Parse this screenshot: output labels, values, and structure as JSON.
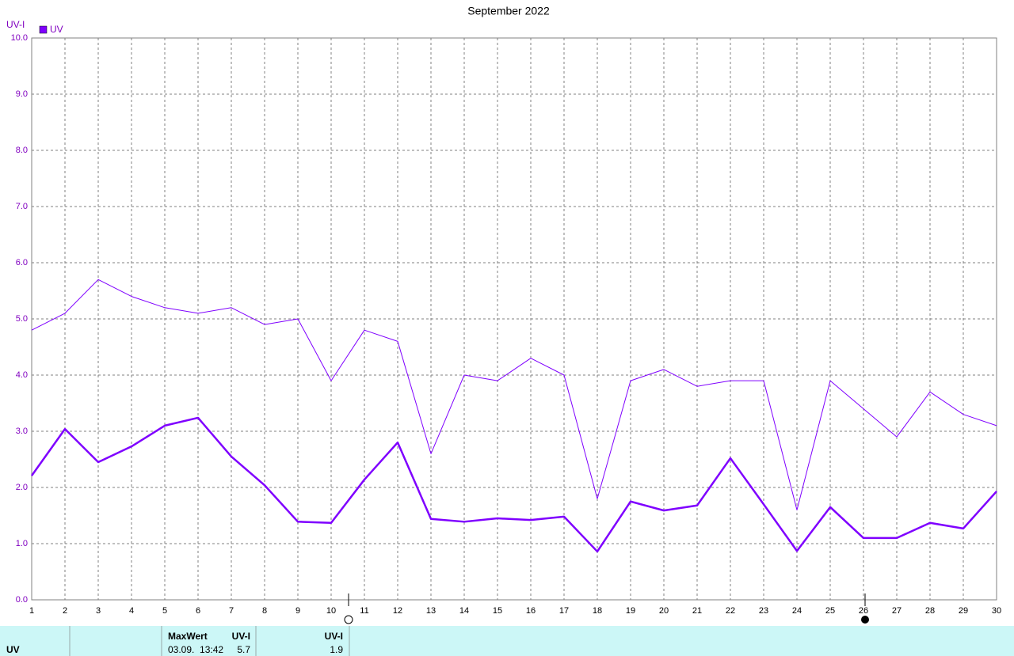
{
  "chart_data": {
    "type": "line",
    "title": "September 2022",
    "y_label": "UV-I",
    "x": [
      1,
      2,
      3,
      4,
      5,
      6,
      7,
      8,
      9,
      10,
      11,
      12,
      13,
      14,
      15,
      16,
      17,
      18,
      19,
      20,
      21,
      22,
      23,
      24,
      25,
      26,
      27,
      28,
      29,
      30
    ],
    "series": [
      {
        "name": "UV",
        "color": "#7f00ff",
        "values": [
          4.8,
          5.1,
          5.7,
          5.4,
          5.2,
          5.1,
          5.2,
          4.9,
          5.0,
          3.9,
          4.8,
          4.6,
          2.6,
          4.0,
          3.9,
          4.3,
          4.0,
          1.8,
          3.9,
          4.1,
          3.8,
          3.9,
          3.9,
          1.6,
          3.9,
          3.4,
          2.9,
          3.7,
          3.3,
          3.1
        ]
      },
      {
        "color": "#7f00ff",
        "values": [
          2.21,
          3.04,
          2.45,
          2.73,
          3.1,
          3.24,
          2.55,
          2.04,
          1.39,
          1.37,
          2.14,
          2.8,
          1.44,
          1.39,
          1.45,
          1.42,
          1.48,
          0.86,
          1.75,
          1.59,
          1.68,
          2.52,
          1.7,
          0.87,
          1.65,
          1.1,
          1.1,
          1.37,
          1.27,
          1.93
        ]
      }
    ],
    "xlim": [
      1,
      30
    ],
    "xticks": [
      1,
      2,
      3,
      4,
      5,
      6,
      7,
      8,
      9,
      10,
      11,
      12,
      13,
      14,
      15,
      16,
      17,
      18,
      19,
      20,
      21,
      22,
      23,
      24,
      25,
      26,
      27,
      28,
      29,
      30
    ],
    "ylim": [
      0,
      10
    ],
    "yticks": [
      {
        "value": 0,
        "label": "0.0"
      },
      {
        "value": 1,
        "label": "1.0"
      },
      {
        "value": 2,
        "label": "2.0"
      },
      {
        "value": 3,
        "label": "3.0"
      },
      {
        "value": 4,
        "label": "4.0"
      },
      {
        "value": 5,
        "label": "5.0"
      },
      {
        "value": 6,
        "label": "6.0"
      },
      {
        "value": 7,
        "label": "7.0"
      },
      {
        "value": 8,
        "label": "8.0"
      },
      {
        "value": 9,
        "label": "9.0"
      },
      {
        "value": 10,
        "label": "10.0"
      }
    ],
    "grid": true
  },
  "table": {
    "name": "UV",
    "header": [
      "MaxWert",
      "UV-I",
      "UV-I"
    ],
    "row": [
      "03.09.  13:42",
      "5.7",
      "1.9"
    ]
  }
}
